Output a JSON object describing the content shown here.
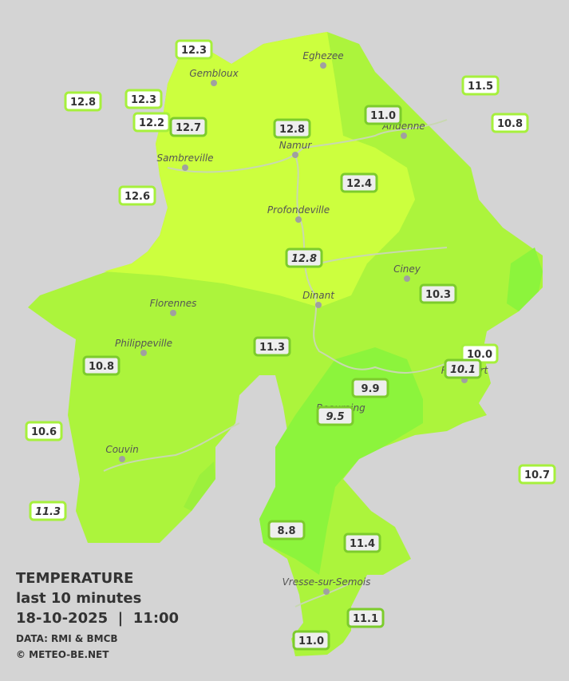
{
  "title": {
    "line1": "TEMPERATURE",
    "line2": "last 10 minutes",
    "line3": "18-10-2025  |  11:00",
    "source": "DATA: RMI & BMCB",
    "copyright": "© METEO-BE.NET"
  },
  "cities": [
    "Eghezee",
    "Gembloux",
    "Andenne",
    "Sambreville",
    "Namur",
    "Profondeville",
    "Ciney",
    "Dinant",
    "Florennes",
    "Philippeville",
    "Rochefort",
    "Beauraing",
    "Couvin",
    "Vresse-sur-Semois"
  ],
  "stations": [
    "12.3",
    "12.8",
    "12.3",
    "12.2",
    "12.7",
    "12.8",
    "11.0",
    "11.5",
    "10.8",
    "12.6",
    "12.4",
    "12.8",
    "10.3",
    "11.3",
    "10.0",
    "10.1",
    "10.8",
    "9.9",
    "9.5",
    "10.6",
    "10.7",
    "11.3",
    "8.8",
    "11.4",
    "11.1",
    "11.0"
  ]
}
